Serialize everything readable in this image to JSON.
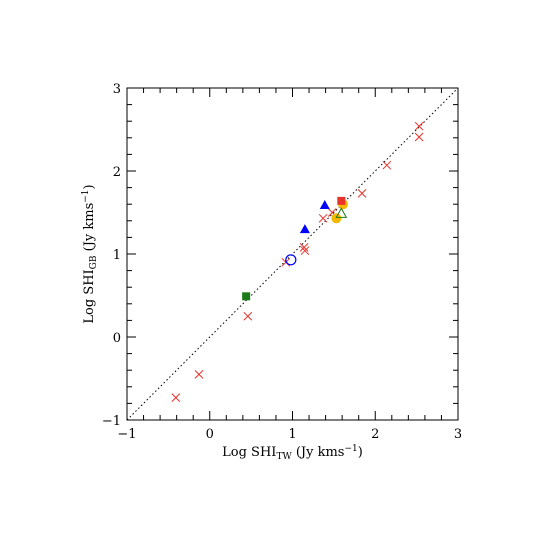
{
  "chart_data": {
    "type": "scatter",
    "xlabel": {
      "text": "Log SHI",
      "sub": "TW",
      "rest": " (Jy kms",
      "sup": "−1",
      "end": ")"
    },
    "ylabel": {
      "text": "Log SHI",
      "sub": "GB",
      "rest": " (Jy kms",
      "sup": "−1",
      "end": ")"
    },
    "xlim": [
      -1,
      3
    ],
    "ylim": [
      -1,
      3
    ],
    "xticks": [
      {
        "value": -1,
        "label": "−1"
      },
      0,
      1,
      2,
      3
    ],
    "yticks": [
      {
        "value": -1,
        "label": "−1"
      },
      0,
      1,
      2,
      3
    ],
    "minor_per_major": 5,
    "identity_line": true,
    "series": [
      {
        "color": "#e8332a",
        "marker": "cross",
        "x": [
          -0.41,
          -0.13,
          0.46,
          0.92,
          1.14,
          1.15,
          1.37,
          1.48,
          1.84,
          2.14,
          2.53,
          2.53
        ],
        "values": [
          -0.73,
          -0.45,
          0.25,
          0.9,
          1.08,
          1.04,
          1.43,
          1.5,
          1.73,
          2.07,
          2.54,
          2.41
        ]
      },
      {
        "color": "#0000ff",
        "marker": "triangle",
        "x": [
          1.15,
          1.39
        ],
        "values": [
          1.3,
          1.59
        ]
      },
      {
        "color": "#0000ff",
        "marker": "open-circle",
        "x": [
          0.98
        ],
        "values": [
          0.93
        ]
      },
      {
        "color": "#1a7a1a",
        "marker": "square",
        "x": [
          0.44
        ],
        "values": [
          0.49
        ]
      },
      {
        "color": "#f5b800",
        "marker": "circle",
        "x": [
          1.53,
          1.61
        ],
        "values": [
          1.43,
          1.6
        ]
      },
      {
        "color": "#e8332a",
        "marker": "square",
        "x": [
          1.59
        ],
        "values": [
          1.64
        ]
      },
      {
        "color": "#1a7a1a",
        "marker": "open-triangle",
        "x": [
          1.59
        ],
        "values": [
          1.49
        ]
      }
    ]
  }
}
